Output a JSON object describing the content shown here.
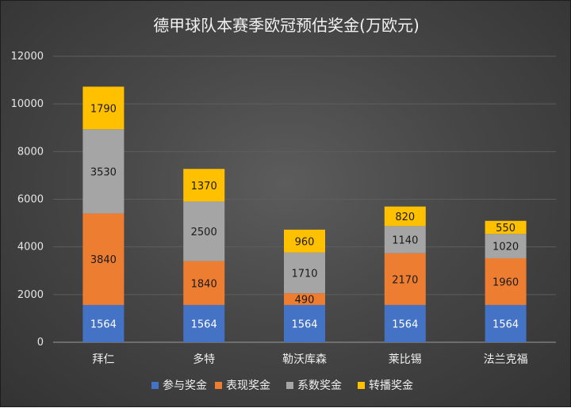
{
  "chart_data": {
    "type": "bar",
    "stacked": true,
    "title": "德甲球队本赛季欧冠预估奖金(万欧元)",
    "categories": [
      "拜仁",
      "多特",
      "勒沃库森",
      "莱比锡",
      "法兰克福"
    ],
    "series": [
      {
        "name": "参与奖金",
        "color": "#4472c4",
        "values": [
          1564,
          1564,
          1564,
          1564,
          1564
        ]
      },
      {
        "name": "表现奖金",
        "color": "#ed7d31",
        "values": [
          3840,
          1840,
          490,
          2170,
          1960
        ]
      },
      {
        "name": "系数奖金",
        "color": "#a5a5a5",
        "values": [
          3530,
          2500,
          1710,
          1140,
          1020
        ]
      },
      {
        "name": "转播奖金",
        "color": "#ffc000",
        "values": [
          1790,
          1370,
          960,
          820,
          550
        ]
      }
    ],
    "ylim": [
      0,
      12000
    ],
    "yticks": [
      "0",
      "2000",
      "4000",
      "6000",
      "8000",
      "10000",
      "12000"
    ],
    "grid": true,
    "legend": "bottom",
    "background": "#474747"
  }
}
